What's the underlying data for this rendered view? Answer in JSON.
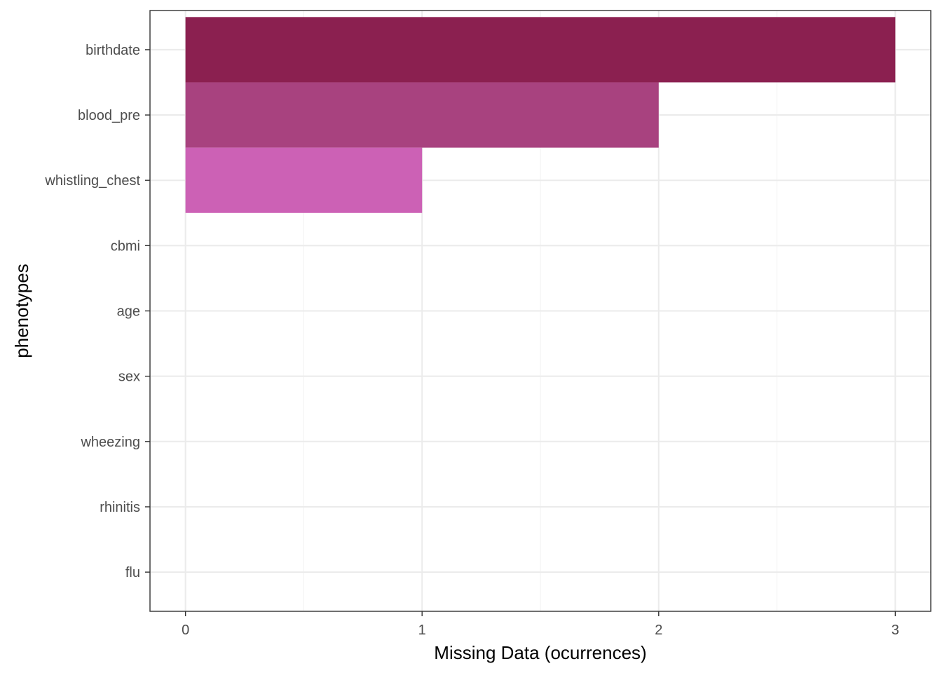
{
  "chart_data": {
    "type": "bar",
    "orientation": "horizontal",
    "categories": [
      "birthdate",
      "blood_pre",
      "whistling_chest",
      "cbmi",
      "age",
      "sex",
      "wheezing",
      "rhinitis",
      "flu"
    ],
    "values": [
      3,
      2,
      1,
      0,
      0,
      0,
      0,
      0,
      0
    ],
    "bar_colors": [
      "#8b2050",
      "#a8427f",
      "#cc61b5",
      "#e8a0d8",
      "#e8a0d8",
      "#e8a0d8",
      "#e8a0d8",
      "#e8a0d8",
      "#e8a0d8"
    ],
    "xlabel": "Missing Data (ocurrences)",
    "ylabel": "phenotypes",
    "xlim": [
      -0.15,
      3.15
    ],
    "x_ticks": [
      0,
      1,
      2,
      3
    ],
    "x_tick_labels": [
      "0",
      "1",
      "2",
      "3"
    ],
    "grid": true,
    "theme": "bw"
  }
}
